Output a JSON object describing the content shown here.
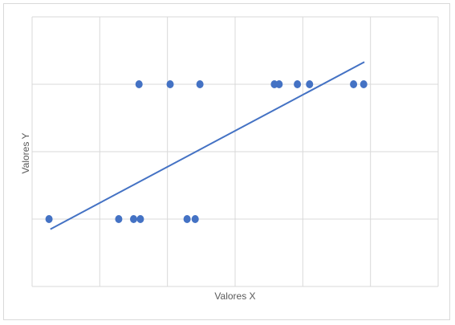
{
  "chart_data": {
    "type": "scatter",
    "title": "",
    "xlabel": "Valores X",
    "ylabel": "Valores Y",
    "xlim": [
      0,
      6
    ],
    "ylim": [
      0,
      4
    ],
    "x_tick_labels": [],
    "y_tick_labels": [],
    "grid": true,
    "legend": "none",
    "colors": {
      "points": "#4472C4",
      "trendline": "#4472C4",
      "grid": "#d9d9d9",
      "axis_text": "#595959"
    },
    "series": [
      {
        "points": [
          {
            "x": 0.25,
            "y": 1
          },
          {
            "x": 1.28,
            "y": 1
          },
          {
            "x": 1.5,
            "y": 1
          },
          {
            "x": 1.6,
            "y": 1
          },
          {
            "x": 2.29,
            "y": 1
          },
          {
            "x": 2.41,
            "y": 1
          },
          {
            "x": 1.58,
            "y": 3
          },
          {
            "x": 2.04,
            "y": 3
          },
          {
            "x": 2.48,
            "y": 3
          },
          {
            "x": 3.58,
            "y": 3
          },
          {
            "x": 3.65,
            "y": 3
          },
          {
            "x": 3.92,
            "y": 3
          },
          {
            "x": 4.1,
            "y": 3
          },
          {
            "x": 4.75,
            "y": 3
          },
          {
            "x": 4.9,
            "y": 3
          }
        ],
        "trendline": {
          "x1": 0.27,
          "y1": 0.85,
          "x2": 4.91,
          "y2": 3.33
        }
      }
    ]
  }
}
